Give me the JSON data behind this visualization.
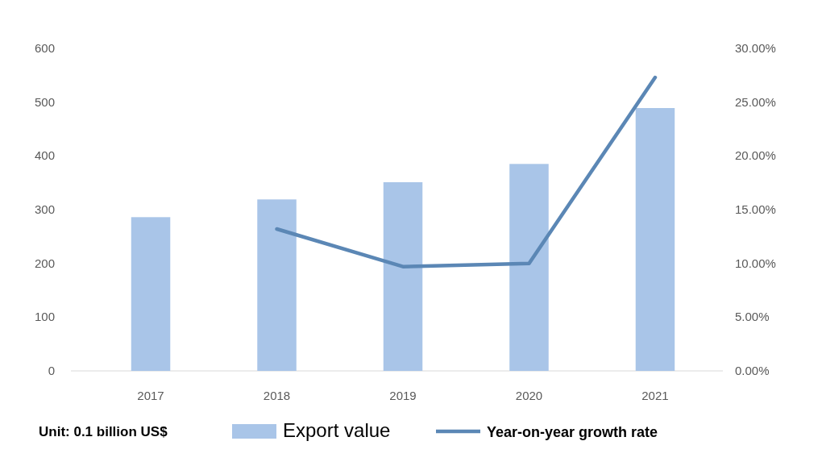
{
  "chart_data": {
    "type": "bar",
    "categories": [
      "2017",
      "2018",
      "2019",
      "2020",
      "2021"
    ],
    "series": [
      {
        "name": "Export value",
        "color": "#a9c5e8",
        "values": [
          286,
          319,
          351,
          385,
          489
        ]
      },
      {
        "name": "Year-on-year growth rate",
        "type": "line",
        "axis": "y2",
        "color": "#5b87b5",
        "values": [
          null,
          13.2,
          9.7,
          10.0,
          27.3
        ]
      }
    ],
    "ylim": [
      0,
      600
    ],
    "yticks": [
      0,
      100,
      200,
      300,
      400,
      500,
      600
    ],
    "y2lim": [
      0,
      30
    ],
    "y2ticks": [
      {
        "value": 0,
        "label": "0.00%"
      },
      {
        "value": 5,
        "label": "5.00%"
      },
      {
        "value": 10,
        "label": "10.00%"
      },
      {
        "value": 15,
        "label": "15.00%"
      },
      {
        "value": 20,
        "label": "20.00%"
      },
      {
        "value": 25,
        "label": "25.00%"
      },
      {
        "value": 30,
        "label": "30.00%"
      }
    ],
    "legend": "bottom",
    "grid": false,
    "annotations": [
      "Unit: 0.1 billion US$"
    ]
  }
}
